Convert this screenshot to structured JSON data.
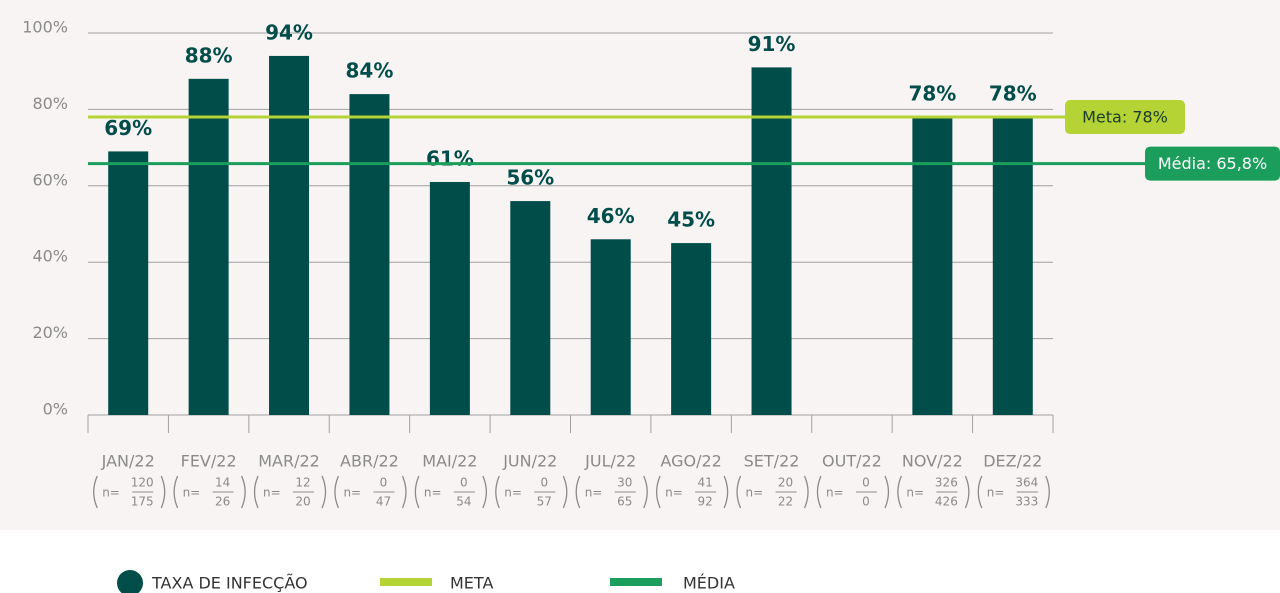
{
  "chart_data": {
    "type": "bar",
    "categories": [
      "JAN/22",
      "FEV/22",
      "MAR/22",
      "ABR/22",
      "MAI/22",
      "JUN/22",
      "JUL/22",
      "AGO/22",
      "SET/22",
      "OUT/22",
      "NOV/22",
      "DEZ/22"
    ],
    "n_prefix": "n=",
    "sample_numerators": [
      120,
      14,
      12,
      0,
      0,
      0,
      30,
      41,
      20,
      0,
      326,
      364
    ],
    "sample_denominators": [
      175,
      26,
      20,
      47,
      54,
      57,
      65,
      92,
      22,
      0,
      426,
      333
    ],
    "series": [
      {
        "name": "TAXA DE INFECÇÃO",
        "color": "#004d4a",
        "values": [
          69,
          88,
          94,
          84,
          61,
          56,
          46,
          45,
          91,
          null,
          78,
          78
        ],
        "value_labels": [
          "69%",
          "88%",
          "94%",
          "84%",
          "61%",
          "56%",
          "46%",
          "45%",
          "91%",
          null,
          "78%",
          "78%"
        ]
      }
    ],
    "reference_lines": [
      {
        "name": "META",
        "value": 78,
        "label": "Meta: 78%",
        "color": "#b5d334",
        "text_color": "#1a3a2a"
      },
      {
        "name": "MÉDIA",
        "value": 65.8,
        "label": "Média: 65,8%",
        "color": "#1b9e5b",
        "text_color": "#ffffff"
      }
    ],
    "ylim": [
      0,
      100
    ],
    "yticks": [
      {
        "value": 0,
        "label": "0%"
      },
      {
        "value": 20,
        "label": "20%"
      },
      {
        "value": 40,
        "label": "40%"
      },
      {
        "value": 60,
        "label": "60%"
      },
      {
        "value": 80,
        "label": "80%"
      },
      {
        "value": 100,
        "label": "100%"
      }
    ],
    "grid": true
  }
}
